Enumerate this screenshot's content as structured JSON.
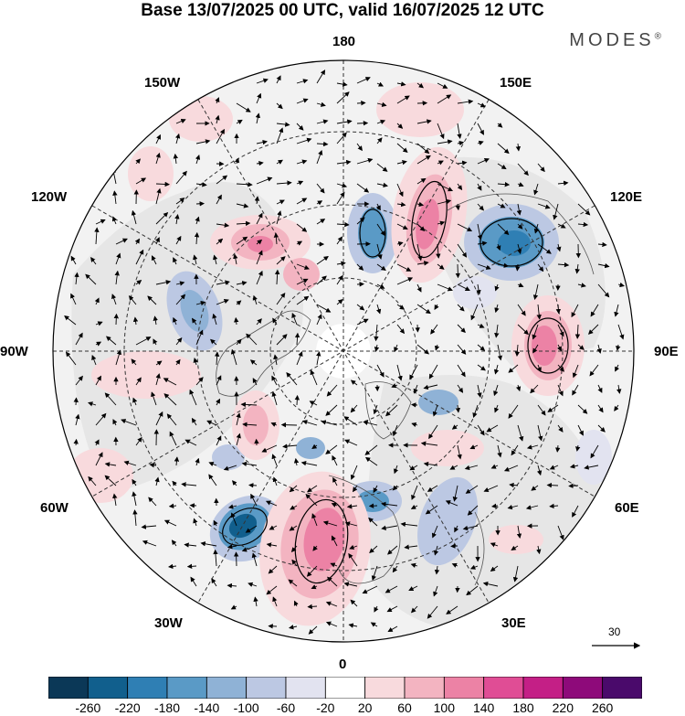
{
  "title": "Base 13/07/2025 00 UTC, valid 16/07/2025 12 UTC",
  "brand": "MODES",
  "brand_mark": "®",
  "longitude_labels": {
    "lon_180": "180",
    "lon_150E": "150E",
    "lon_120E": "120E",
    "lon_90E": "90E",
    "lon_60E": "60E",
    "lon_30E": "30E",
    "lon_0": "0",
    "lon_30W": "30W",
    "lon_60W": "60W",
    "lon_90W": "90W",
    "lon_120W": "120W",
    "lon_150W": "150W"
  },
  "vector_scale_label": "30",
  "colorbar": {
    "labels": [
      "-260",
      "-220",
      "-180",
      "-140",
      "-100",
      "-60",
      "-20",
      "20",
      "60",
      "100",
      "140",
      "180",
      "220",
      "260"
    ],
    "colors": [
      "#0b3857",
      "#115f8d",
      "#2f7fb4",
      "#5a9ac6",
      "#8fb2d6",
      "#bcc8e3",
      "#e2e3f0",
      "#ffffff",
      "#f8dadd",
      "#f3b4c1",
      "#ec82a5",
      "#e04d95",
      "#c41f86",
      "#8e0a7a",
      "#4a0a6b"
    ]
  },
  "colors": {
    "background_land": "#ebebeb",
    "graticule": "#333333"
  }
}
